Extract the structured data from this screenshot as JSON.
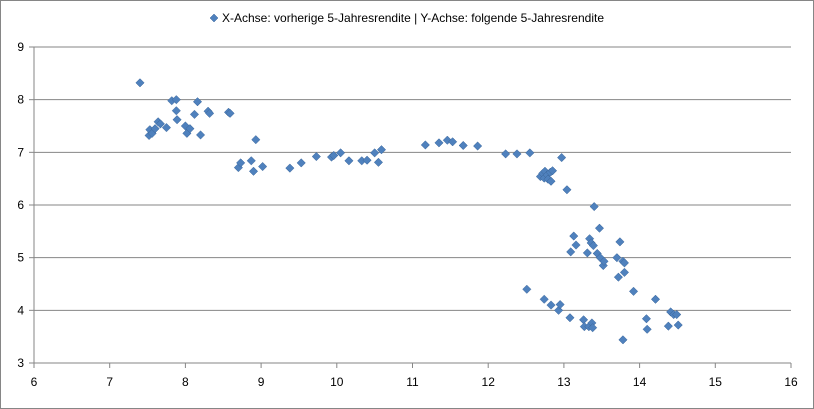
{
  "chart_data": {
    "type": "scatter",
    "legend": "X-Achse: vorherige 5-Jahresrendite | Y-Achse: folgende 5-Jahresrendite",
    "legend_position": "top",
    "xlim": [
      6,
      16
    ],
    "ylim": [
      3,
      9
    ],
    "x_ticks": [
      "6",
      "7",
      "8",
      "9",
      "10",
      "11",
      "12",
      "13",
      "14",
      "15",
      "16"
    ],
    "y_ticks": [
      "3",
      "4",
      "5",
      "6",
      "7",
      "8",
      "9"
    ],
    "grid": "horizontal",
    "marker_color": "#4F81BD",
    "points": [
      [
        7.4,
        8.32
      ],
      [
        7.52,
        7.32
      ],
      [
        7.53,
        7.43
      ],
      [
        7.56,
        7.36
      ],
      [
        7.6,
        7.45
      ],
      [
        7.64,
        7.58
      ],
      [
        7.67,
        7.54
      ],
      [
        7.75,
        7.47
      ],
      [
        7.82,
        7.98
      ],
      [
        7.88,
        7.79
      ],
      [
        7.88,
        8.0
      ],
      [
        7.89,
        7.62
      ],
      [
        8.0,
        7.5
      ],
      [
        8.02,
        7.36
      ],
      [
        8.06,
        7.45
      ],
      [
        8.12,
        7.72
      ],
      [
        8.16,
        7.96
      ],
      [
        8.2,
        7.33
      ],
      [
        8.3,
        7.78
      ],
      [
        8.32,
        7.74
      ],
      [
        8.57,
        7.76
      ],
      [
        8.59,
        7.74
      ],
      [
        8.7,
        6.71
      ],
      [
        8.73,
        6.8
      ],
      [
        8.87,
        6.84
      ],
      [
        8.9,
        6.64
      ],
      [
        8.93,
        7.24
      ],
      [
        9.02,
        6.73
      ],
      [
        9.38,
        6.7
      ],
      [
        9.53,
        6.8
      ],
      [
        9.73,
        6.92
      ],
      [
        9.93,
        6.91
      ],
      [
        9.96,
        6.94
      ],
      [
        10.05,
        6.99
      ],
      [
        10.16,
        6.84
      ],
      [
        10.33,
        6.84
      ],
      [
        10.4,
        6.85
      ],
      [
        10.5,
        6.99
      ],
      [
        10.55,
        6.81
      ],
      [
        10.59,
        7.05
      ],
      [
        11.17,
        7.14
      ],
      [
        11.35,
        7.18
      ],
      [
        11.46,
        7.23
      ],
      [
        11.53,
        7.2
      ],
      [
        11.67,
        7.13
      ],
      [
        11.86,
        7.12
      ],
      [
        12.23,
        6.97
      ],
      [
        12.38,
        6.97
      ],
      [
        12.55,
        6.99
      ],
      [
        12.69,
        6.54
      ],
      [
        12.72,
        6.6
      ],
      [
        12.74,
        6.51
      ],
      [
        12.75,
        6.64
      ],
      [
        12.78,
        6.57
      ],
      [
        12.79,
        6.49
      ],
      [
        12.82,
        6.62
      ],
      [
        12.83,
        6.45
      ],
      [
        12.85,
        6.65
      ],
      [
        12.97,
        6.9
      ],
      [
        13.04,
        6.29
      ],
      [
        12.51,
        4.4
      ],
      [
        12.74,
        4.21
      ],
      [
        12.83,
        4.1
      ],
      [
        12.93,
        4.0
      ],
      [
        12.95,
        4.11
      ],
      [
        13.08,
        3.86
      ],
      [
        13.09,
        5.11
      ],
      [
        13.13,
        5.41
      ],
      [
        13.16,
        5.24
      ],
      [
        13.26,
        3.82
      ],
      [
        13.27,
        3.69
      ],
      [
        13.31,
        5.09
      ],
      [
        13.33,
        3.69
      ],
      [
        13.34,
        5.36
      ],
      [
        13.36,
        5.28
      ],
      [
        13.37,
        3.76
      ],
      [
        13.38,
        3.67
      ],
      [
        13.39,
        5.23
      ],
      [
        13.4,
        5.97
      ],
      [
        13.44,
        5.08
      ],
      [
        13.47,
        5.56
      ],
      [
        13.48,
        5.0
      ],
      [
        13.52,
        4.85
      ],
      [
        13.53,
        4.93
      ],
      [
        13.7,
        5.0
      ],
      [
        13.72,
        4.63
      ],
      [
        13.74,
        5.3
      ],
      [
        13.78,
        4.93
      ],
      [
        13.78,
        3.44
      ],
      [
        13.8,
        4.72
      ],
      [
        13.8,
        4.9
      ],
      [
        13.92,
        4.36
      ],
      [
        14.09,
        3.84
      ],
      [
        14.1,
        3.64
      ],
      [
        14.21,
        4.21
      ],
      [
        14.38,
        3.7
      ],
      [
        14.41,
        3.97
      ],
      [
        14.45,
        3.92
      ],
      [
        14.49,
        3.92
      ],
      [
        14.51,
        3.72
      ]
    ]
  }
}
